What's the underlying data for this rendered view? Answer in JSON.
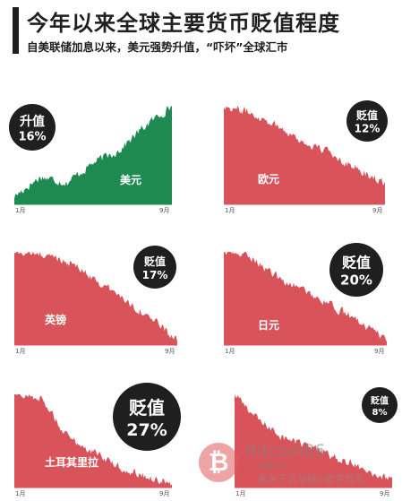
{
  "header": {
    "title": "今年以来全球主要货币贬值程度",
    "subtitle": "自美联储加息以来，美元强势升值，“吓坏”全球汇市"
  },
  "colors": {
    "green": "#1e8a4f",
    "red": "#d9545a",
    "badge": "#1f1f1f"
  },
  "chart_data": [
    {
      "type": "area",
      "name": "美元",
      "direction": "升值",
      "change": "16%",
      "x_ticks": [
        "1月",
        "9月"
      ],
      "trend": [
        0.08,
        0.28,
        0.22,
        0.42,
        0.55,
        0.8,
        1.0
      ],
      "label_pos": "bottom-right",
      "badge_pos": "top-left",
      "color": "green"
    },
    {
      "type": "area",
      "name": "欧元",
      "direction": "贬值",
      "change": "12%",
      "x_ticks": [
        "1月",
        "9月"
      ],
      "trend": [
        1.0,
        0.93,
        0.8,
        0.62,
        0.52,
        0.35,
        0.22
      ],
      "label_pos": "center",
      "badge_pos": "top-right",
      "color": "red"
    },
    {
      "type": "area",
      "name": "英镑",
      "direction": "贬值",
      "change": "17%",
      "x_ticks": [
        "1月",
        "9月"
      ],
      "trend": [
        1.0,
        0.97,
        0.9,
        0.7,
        0.5,
        0.3,
        0.05
      ],
      "label_pos": "bottom-left",
      "badge_pos": "top-right",
      "color": "red"
    },
    {
      "type": "area",
      "name": "日元",
      "direction": "贬值",
      "change": "20%",
      "x_ticks": [
        "1月",
        "9月"
      ],
      "trend": [
        1.0,
        0.95,
        0.72,
        0.58,
        0.42,
        0.25,
        0.04
      ],
      "label_pos": "center",
      "badge_pos": "top-right",
      "color": "red"
    },
    {
      "type": "area",
      "name": "土耳其里拉",
      "direction": "贬值",
      "change": "27%",
      "x_ticks": [
        "1月",
        "9月"
      ],
      "trend": [
        1.0,
        0.97,
        0.55,
        0.38,
        0.22,
        0.12,
        0.04
      ],
      "label_pos": "bottom-left",
      "badge_pos": "top-right",
      "color": "red"
    },
    {
      "type": "area",
      "name": "",
      "direction": "贬值",
      "change": "8%",
      "x_ticks": [
        "1月",
        "9月"
      ],
      "trend": [
        1.0,
        0.7,
        0.52,
        0.42,
        0.3,
        0.2,
        0.08
      ],
      "label_pos": "none",
      "badge_pos": "top-right",
      "color": "red"
    }
  ],
  "watermark": {
    "logo": "₿",
    "brand": "Bitcoin86",
    "sub": "币圈天下",
    "line": "服务于区块链&数字货币"
  }
}
